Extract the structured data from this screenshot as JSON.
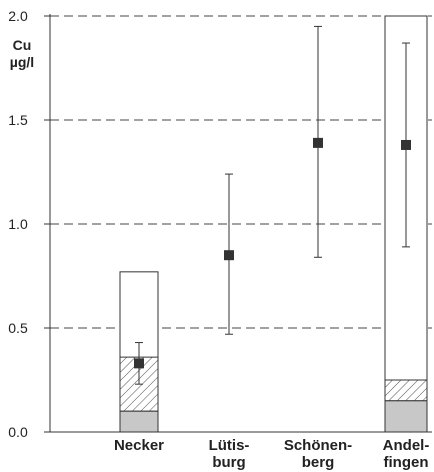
{
  "chart_data": {
    "type": "scatter",
    "ylabel_lines": [
      "Cu",
      "µg/l"
    ],
    "ylim": [
      0,
      2.0
    ],
    "yticks": [
      "0.0",
      "0.5",
      "1.0",
      "1.5",
      "2.0"
    ],
    "grid": "dashed horizontal at 0.5, 1.0, 1.5, 2.0",
    "categories": [
      {
        "lines": [
          "Necker"
        ]
      },
      {
        "lines": [
          "Lütis-",
          "burg"
        ]
      },
      {
        "lines": [
          "Schönen-",
          "berg"
        ]
      },
      {
        "lines": [
          "Andel-",
          "fingen"
        ]
      }
    ],
    "points": [
      {
        "category": "Necker",
        "mean": 0.33,
        "low": 0.23,
        "high": 0.43
      },
      {
        "category": "Lütisburg",
        "mean": 0.85,
        "low": 0.47,
        "high": 1.24
      },
      {
        "category": "Schönenberg",
        "mean": 1.39,
        "low": 0.84,
        "high": 1.95
      },
      {
        "category": "Andelfingen",
        "mean": 1.38,
        "low": 0.89,
        "high": 1.87
      }
    ],
    "stacked_boxes": [
      {
        "category": "Necker",
        "gray": 0.1,
        "hatched": 0.36,
        "total": 0.77
      },
      {
        "category": "Andelfingen",
        "gray": 0.15,
        "hatched": 0.25,
        "total": 2.0
      }
    ],
    "colors": {
      "marker": "#333333",
      "gray_fill": "#c8c8c8",
      "line": "#333333"
    }
  }
}
